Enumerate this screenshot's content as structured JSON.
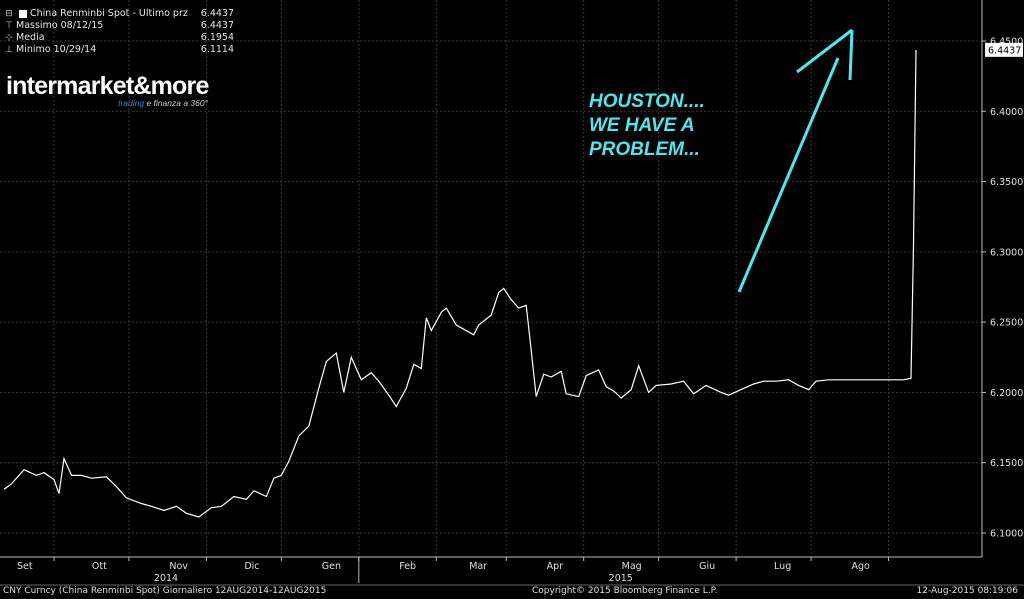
{
  "legend": {
    "items": [
      {
        "icon": "square-icon",
        "label": "China Renminbi Spot - Ultimo prz",
        "value": "6.4437"
      },
      {
        "icon": "high-marker-icon",
        "label": "Massimo 08/12/15",
        "value": "6.4437"
      },
      {
        "icon": "mean-marker-icon",
        "label": "Media",
        "value": "6.1954"
      },
      {
        "icon": "low-marker-icon",
        "label": "Minimo 10/29/14",
        "value": "6.1114"
      }
    ]
  },
  "logo": {
    "brand": "intermarket&more",
    "tagline_highlight": "trading",
    "tagline_rest": " e finanza a 360°"
  },
  "annotation": "HOUSTON....\nWE HAVE A\nPROBLEM...",
  "footer": {
    "left": "CNY Curncy (China Renminbi Spot)  Giornaliero 12AUG2014-12AUG2015",
    "center": "Copyright© 2015 Bloomberg Finance L.P.",
    "right": "12-Aug-2015 08:19:06"
  },
  "colors": {
    "line": "#ffffff",
    "grid": "#3a3a3a",
    "annotation": "#4fe6ee",
    "background": "#000000"
  },
  "chart_data": {
    "type": "line",
    "title": "China Renminbi Spot - Ultimo prz",
    "ylim": [
      6.095,
      6.46
    ],
    "y_ticks": [
      6.1,
      6.15,
      6.2,
      6.25,
      6.3,
      6.35,
      6.4,
      6.45
    ],
    "y_tick_labels": [
      "6.1000",
      "6.1500",
      "6.2000",
      "6.2500",
      "6.3000",
      "6.3500",
      "6.4000",
      "6.4500"
    ],
    "last_value_label": "6.4437",
    "x_range": [
      "2014-08-12",
      "2015-08-12"
    ],
    "x_ticks": [
      {
        "label": "Set",
        "date": "2014-09-01"
      },
      {
        "label": "Ott",
        "date": "2014-10-01"
      },
      {
        "label": "Nov",
        "date": "2014-11-01"
      },
      {
        "label": "Dic",
        "date": "2014-12-01"
      },
      {
        "label": "Gen",
        "date": "2015-01-01"
      },
      {
        "label": "Feb",
        "date": "2015-02-01"
      },
      {
        "label": "Mar",
        "date": "2015-03-01"
      },
      {
        "label": "Apr",
        "date": "2015-04-01"
      },
      {
        "label": "Mag",
        "date": "2015-05-01"
      },
      {
        "label": "Giu",
        "date": "2015-06-01"
      },
      {
        "label": "Lug",
        "date": "2015-07-01"
      },
      {
        "label": "Ago",
        "date": "2015-08-01"
      }
    ],
    "year_labels": [
      {
        "label": "2014",
        "date": "2014-10-15"
      },
      {
        "label": "2015",
        "date": "2015-04-15"
      }
    ],
    "grid": true,
    "series": [
      {
        "name": "China Renminbi Spot",
        "points": [
          [
            "2014-08-12",
            6.131
          ],
          [
            "2014-08-15",
            6.135
          ],
          [
            "2014-08-20",
            6.145
          ],
          [
            "2014-08-25",
            6.141
          ],
          [
            "2014-08-28",
            6.143
          ],
          [
            "2014-09-01",
            6.138
          ],
          [
            "2014-09-03",
            6.128
          ],
          [
            "2014-09-05",
            6.153
          ],
          [
            "2014-09-08",
            6.141
          ],
          [
            "2014-09-12",
            6.141
          ],
          [
            "2014-09-16",
            6.139
          ],
          [
            "2014-09-22",
            6.14
          ],
          [
            "2014-09-26",
            6.133
          ],
          [
            "2014-09-30",
            6.125
          ],
          [
            "2014-10-06",
            6.121
          ],
          [
            "2014-10-10",
            6.119
          ],
          [
            "2014-10-15",
            6.116
          ],
          [
            "2014-10-20",
            6.119
          ],
          [
            "2014-10-24",
            6.114
          ],
          [
            "2014-10-29",
            6.1114
          ],
          [
            "2014-11-03",
            6.118
          ],
          [
            "2014-11-07",
            6.119
          ],
          [
            "2014-11-12",
            6.126
          ],
          [
            "2014-11-17",
            6.124
          ],
          [
            "2014-11-20",
            6.13
          ],
          [
            "2014-11-25",
            6.126
          ],
          [
            "2014-11-28",
            6.139
          ],
          [
            "2014-12-01",
            6.141
          ],
          [
            "2014-12-04",
            6.151
          ],
          [
            "2014-12-08",
            6.169
          ],
          [
            "2014-12-12",
            6.176
          ],
          [
            "2014-12-16",
            6.203
          ],
          [
            "2014-12-19",
            6.222
          ],
          [
            "2014-12-23",
            6.228
          ],
          [
            "2014-12-26",
            6.2
          ],
          [
            "2014-12-29",
            6.225
          ],
          [
            "2015-01-02",
            6.209
          ],
          [
            "2015-01-06",
            6.214
          ],
          [
            "2015-01-09",
            6.208
          ],
          [
            "2015-01-13",
            6.198
          ],
          [
            "2015-01-16",
            6.19
          ],
          [
            "2015-01-20",
            6.203
          ],
          [
            "2015-01-23",
            6.22
          ],
          [
            "2015-01-26",
            6.217
          ],
          [
            "2015-01-28",
            6.253
          ],
          [
            "2015-01-30",
            6.244
          ],
          [
            "2015-02-03",
            6.257
          ],
          [
            "2015-02-05",
            6.26
          ],
          [
            "2015-02-09",
            6.248
          ],
          [
            "2015-02-12",
            6.245
          ],
          [
            "2015-02-16",
            6.241
          ],
          [
            "2015-02-18",
            6.248
          ],
          [
            "2015-02-23",
            6.255
          ],
          [
            "2015-02-26",
            6.271
          ],
          [
            "2015-02-28",
            6.274
          ],
          [
            "2015-03-03",
            6.266
          ],
          [
            "2015-03-06",
            6.26
          ],
          [
            "2015-03-09",
            6.262
          ],
          [
            "2015-03-11",
            6.23
          ],
          [
            "2015-03-13",
            6.197
          ],
          [
            "2015-03-16",
            6.213
          ],
          [
            "2015-03-19",
            6.211
          ],
          [
            "2015-03-23",
            6.215
          ],
          [
            "2015-03-25",
            6.199
          ],
          [
            "2015-03-30",
            6.197
          ],
          [
            "2015-04-02",
            6.212
          ],
          [
            "2015-04-07",
            6.216
          ],
          [
            "2015-04-10",
            6.204
          ],
          [
            "2015-04-13",
            6.201
          ],
          [
            "2015-04-16",
            6.196
          ],
          [
            "2015-04-20",
            6.202
          ],
          [
            "2015-04-23",
            6.219
          ],
          [
            "2015-04-27",
            6.2
          ],
          [
            "2015-04-30",
            6.205
          ],
          [
            "2015-05-06",
            6.206
          ],
          [
            "2015-05-11",
            6.208
          ],
          [
            "2015-05-15",
            6.199
          ],
          [
            "2015-05-20",
            6.205
          ],
          [
            "2015-05-26",
            6.2
          ],
          [
            "2015-05-29",
            6.198
          ],
          [
            "2015-06-03",
            6.202
          ],
          [
            "2015-06-08",
            6.206
          ],
          [
            "2015-06-12",
            6.208
          ],
          [
            "2015-06-17",
            6.208
          ],
          [
            "2015-06-22",
            6.209
          ],
          [
            "2015-06-26",
            6.205
          ],
          [
            "2015-06-30",
            6.202
          ],
          [
            "2015-07-03",
            6.208
          ],
          [
            "2015-07-08",
            6.209
          ],
          [
            "2015-07-15",
            6.209
          ],
          [
            "2015-07-22",
            6.209
          ],
          [
            "2015-07-28",
            6.209
          ],
          [
            "2015-08-03",
            6.209
          ],
          [
            "2015-08-07",
            6.209
          ],
          [
            "2015-08-10",
            6.21
          ],
          [
            "2015-08-11",
            6.305
          ],
          [
            "2015-08-12",
            6.4437
          ]
        ]
      }
    ]
  }
}
